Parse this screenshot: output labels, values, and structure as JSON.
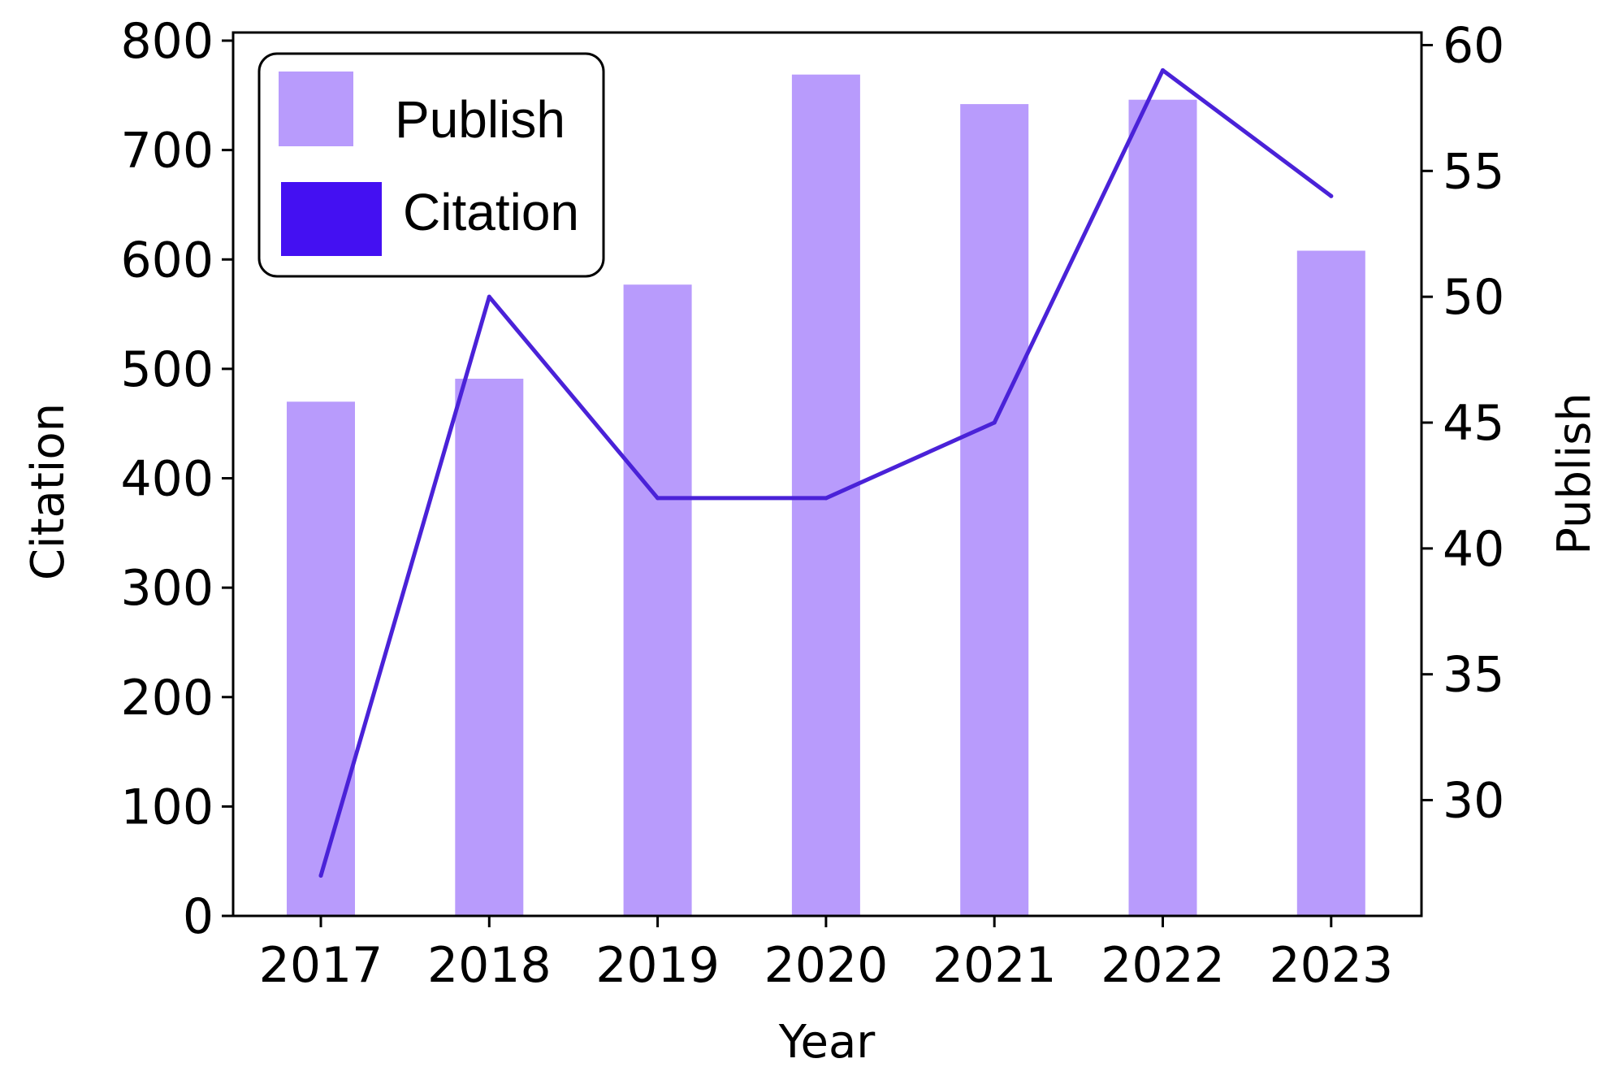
{
  "chart_data": {
    "type": "bar",
    "categories": [
      "2017",
      "2018",
      "2019",
      "2020",
      "2021",
      "2022",
      "2023"
    ],
    "xlabel": "Year",
    "ylabel_left": "Citation",
    "ylabel_right": "Publish",
    "left_axis": {
      "range": [
        0,
        800
      ],
      "ticks": [
        "0",
        "100",
        "200",
        "300",
        "400",
        "500",
        "600",
        "700",
        "800"
      ]
    },
    "right_axis": {
      "range": [
        25.4,
        60.5
      ],
      "ticks": [
        "30",
        "35",
        "40",
        "45",
        "50",
        "55",
        "60"
      ]
    },
    "grid": false,
    "legend_position": "top-left",
    "series": [
      {
        "name": "Publish",
        "type": "bar",
        "axis": "left",
        "color": "#b89bfc",
        "values": [
          470,
          491,
          577,
          769,
          742,
          746,
          608
        ]
      },
      {
        "name": "Citation",
        "type": "line",
        "axis": "right",
        "color": "#4a22d8",
        "legend_color": "#4410f2",
        "values": [
          27,
          50,
          42,
          42,
          45,
          59,
          54
        ]
      }
    ]
  }
}
